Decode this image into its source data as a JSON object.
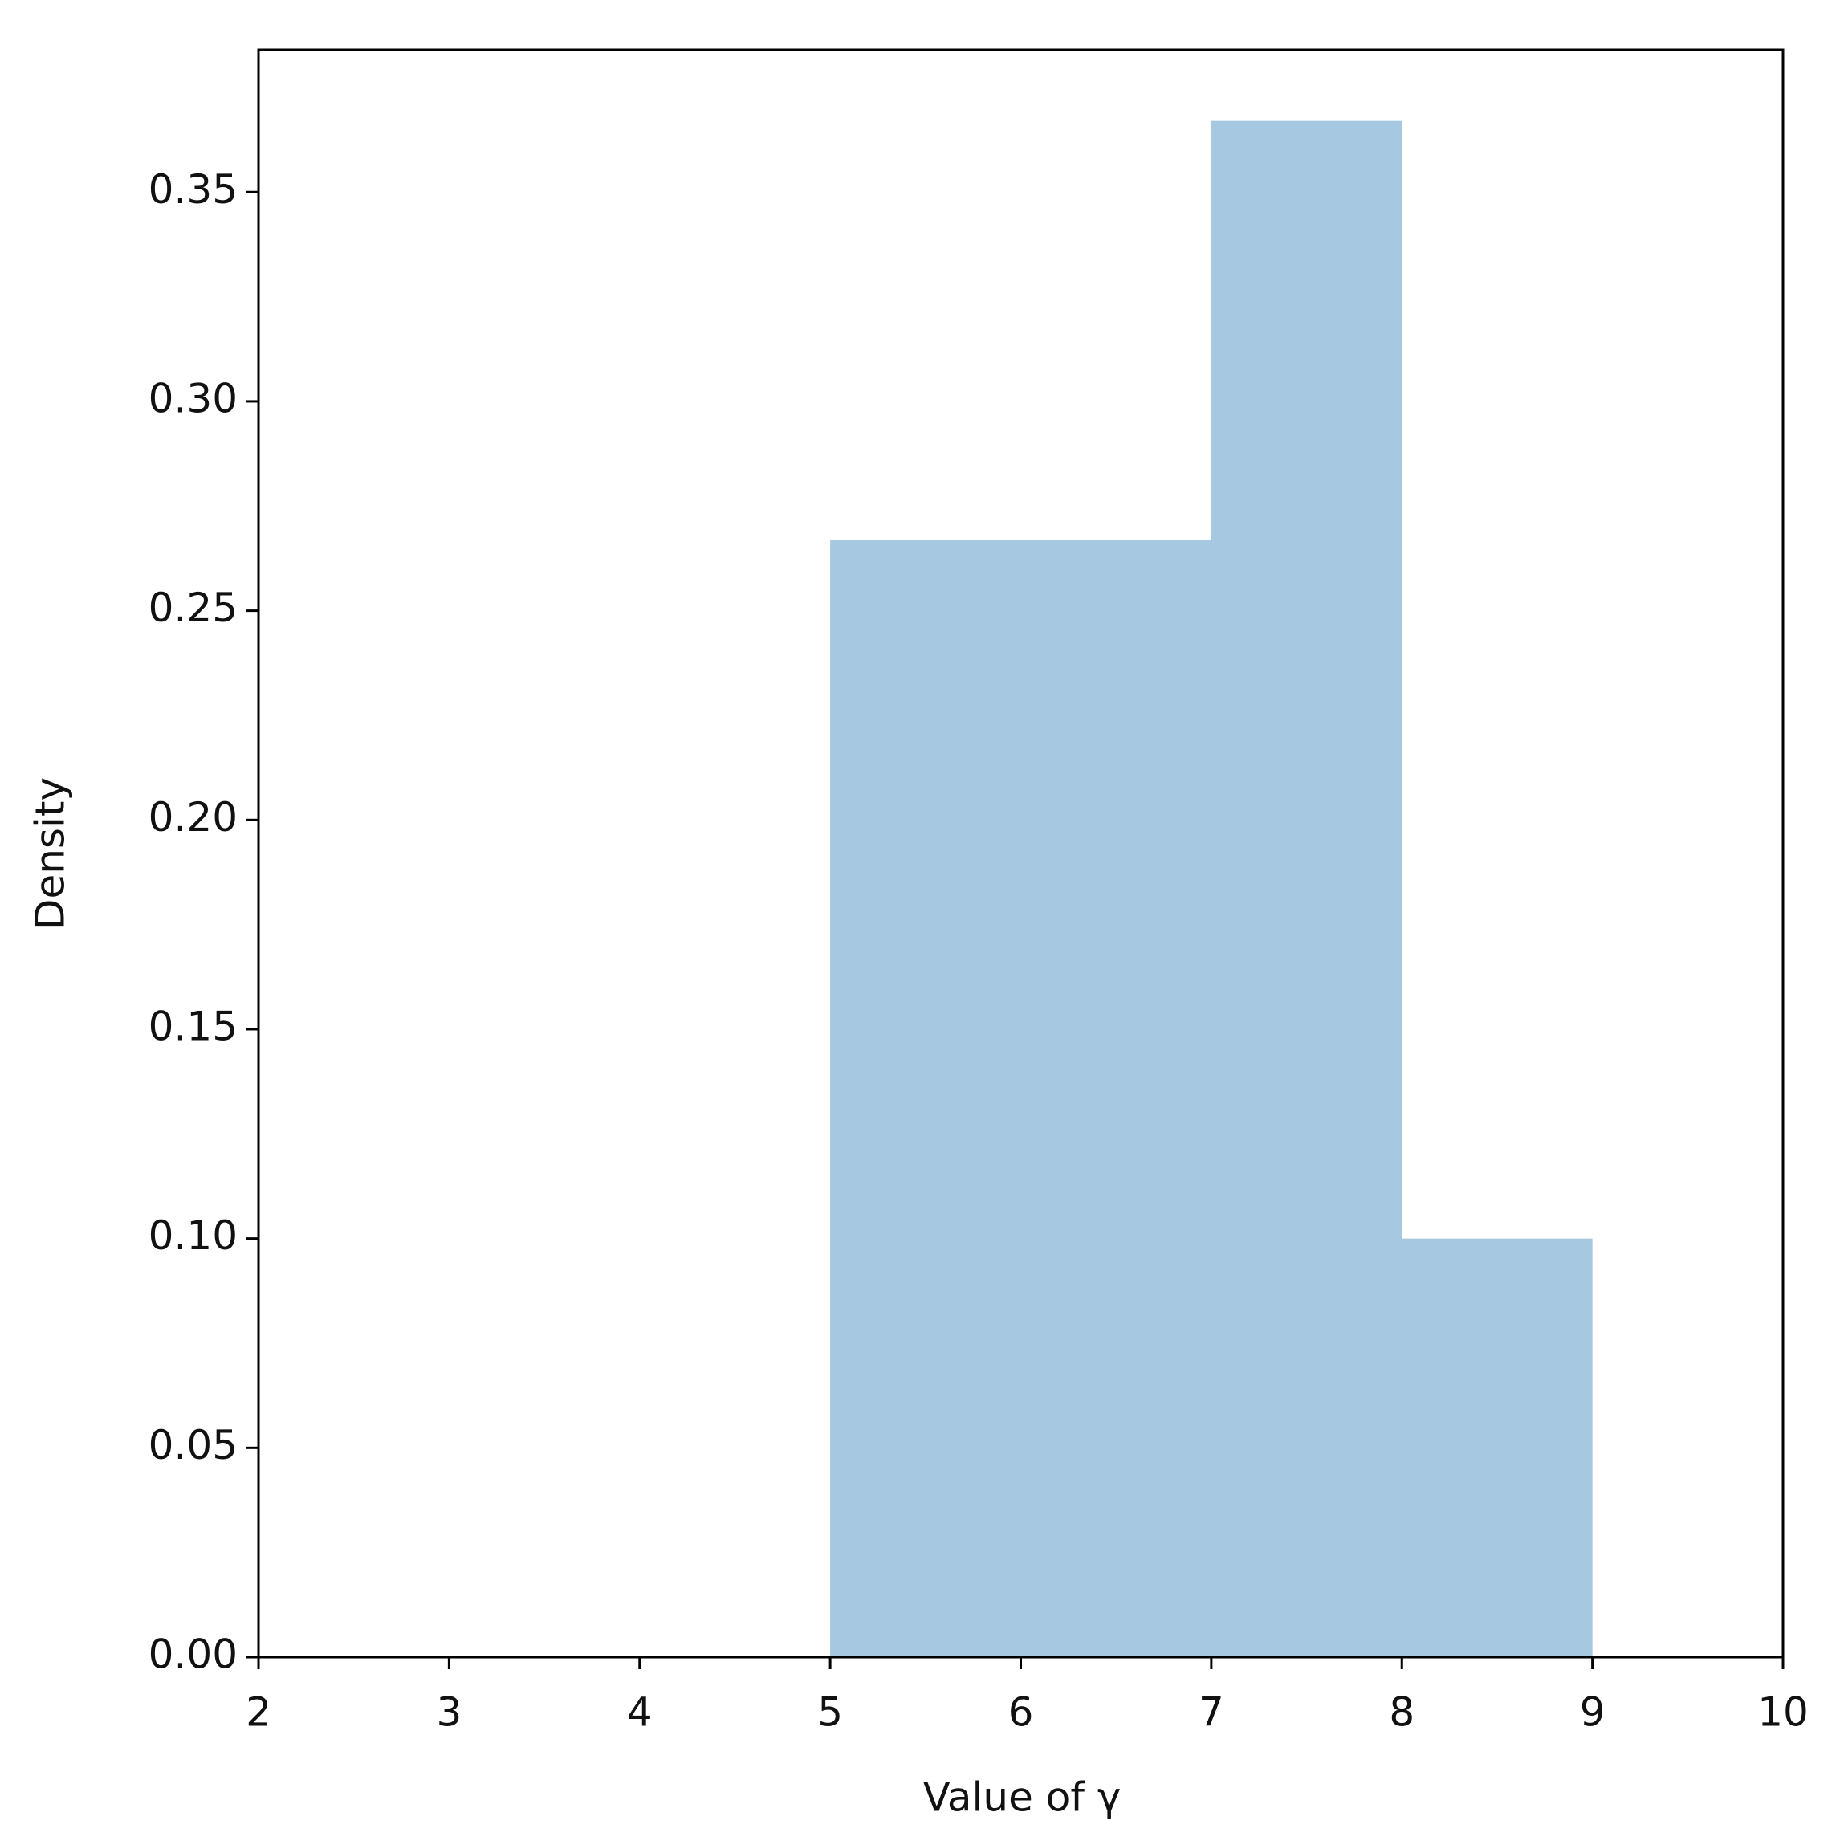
{
  "chart_data": {
    "type": "histogram",
    "xlabel": "Value of γ",
    "ylabel": "Density",
    "bins": [
      5,
      6,
      7,
      8,
      9
    ],
    "values": [
      0.267,
      0.267,
      0.367,
      0.1
    ],
    "color": "#a6c8e0",
    "xlim": [
      2,
      10
    ],
    "ylim": [
      0,
      0.384
    ],
    "xticks": [
      2,
      3,
      4,
      5,
      6,
      7,
      8,
      9,
      10
    ],
    "yticks": [
      {
        "value": 0,
        "label": "0.00"
      },
      {
        "value": 0.05,
        "label": "0.05"
      },
      {
        "value": 0.1,
        "label": "0.10"
      },
      {
        "value": 0.15,
        "label": "0.15"
      },
      {
        "value": 0.2,
        "label": "0.20"
      },
      {
        "value": 0.25,
        "label": "0.25"
      },
      {
        "value": 0.3,
        "label": "0.30"
      },
      {
        "value": 0.35,
        "label": "0.35"
      }
    ],
    "grid": false
  }
}
